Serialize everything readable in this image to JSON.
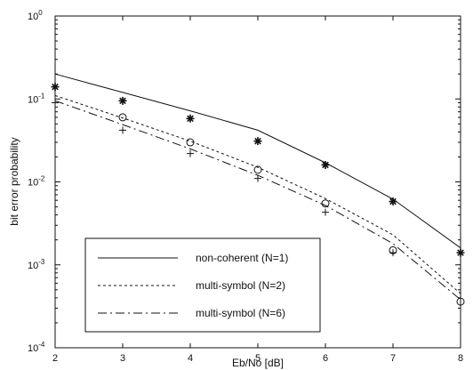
{
  "chart_data": {
    "type": "line",
    "xlabel": "Eb/No [dB]",
    "ylabel": "bit error probability",
    "xlim": [
      2,
      8
    ],
    "ylim": [
      0.0001,
      1
    ],
    "yscale": "log",
    "grid": false,
    "legend_position": "bottom-left",
    "x_ticks": [
      "2",
      "3",
      "4",
      "5",
      "6",
      "7",
      "8"
    ],
    "y_ticks": [
      {
        "base": "10",
        "exp": "0"
      },
      {
        "base": "10",
        "exp": "-1"
      },
      {
        "base": "10",
        "exp": "-2"
      },
      {
        "base": "10",
        "exp": "-3"
      },
      {
        "base": "10",
        "exp": "-4"
      }
    ],
    "series": [
      {
        "name": "non-coherent (N=1)",
        "line_style": "solid",
        "x": [
          2,
          3,
          4,
          5,
          6,
          7,
          8
        ],
        "values": [
          0.2,
          0.12,
          0.072,
          0.042,
          0.017,
          0.0062,
          0.0016
        ]
      },
      {
        "name": "multi-symbol (N=2)",
        "line_style": "dotted",
        "x": [
          2,
          3,
          4,
          5,
          6,
          7,
          8
        ],
        "values": [
          0.11,
          0.059,
          0.031,
          0.015,
          0.0063,
          0.0023,
          0.00045
        ]
      },
      {
        "name": "multi-symbol (N=6)",
        "line_style": "dash-dot",
        "x": [
          2,
          3,
          4,
          5,
          6,
          7,
          8
        ],
        "values": [
          0.095,
          0.049,
          0.025,
          0.012,
          0.0052,
          0.0018,
          0.00038
        ]
      }
    ],
    "markers": [
      {
        "symbol": "asterisk",
        "x": [
          2,
          3,
          4,
          5,
          6,
          7,
          8
        ],
        "values": [
          0.14,
          0.095,
          0.058,
          0.031,
          0.016,
          0.0058,
          0.0014
        ]
      },
      {
        "symbol": "circle",
        "x": [
          3,
          4,
          5,
          6,
          7,
          8
        ],
        "values": [
          0.06,
          0.03,
          0.014,
          0.0055,
          0.0015,
          0.00036
        ]
      },
      {
        "symbol": "plus",
        "x": [
          2,
          3,
          4,
          5,
          6,
          7
        ],
        "values": [
          0.09,
          0.042,
          0.022,
          0.011,
          0.0043,
          0.0014
        ]
      }
    ]
  }
}
